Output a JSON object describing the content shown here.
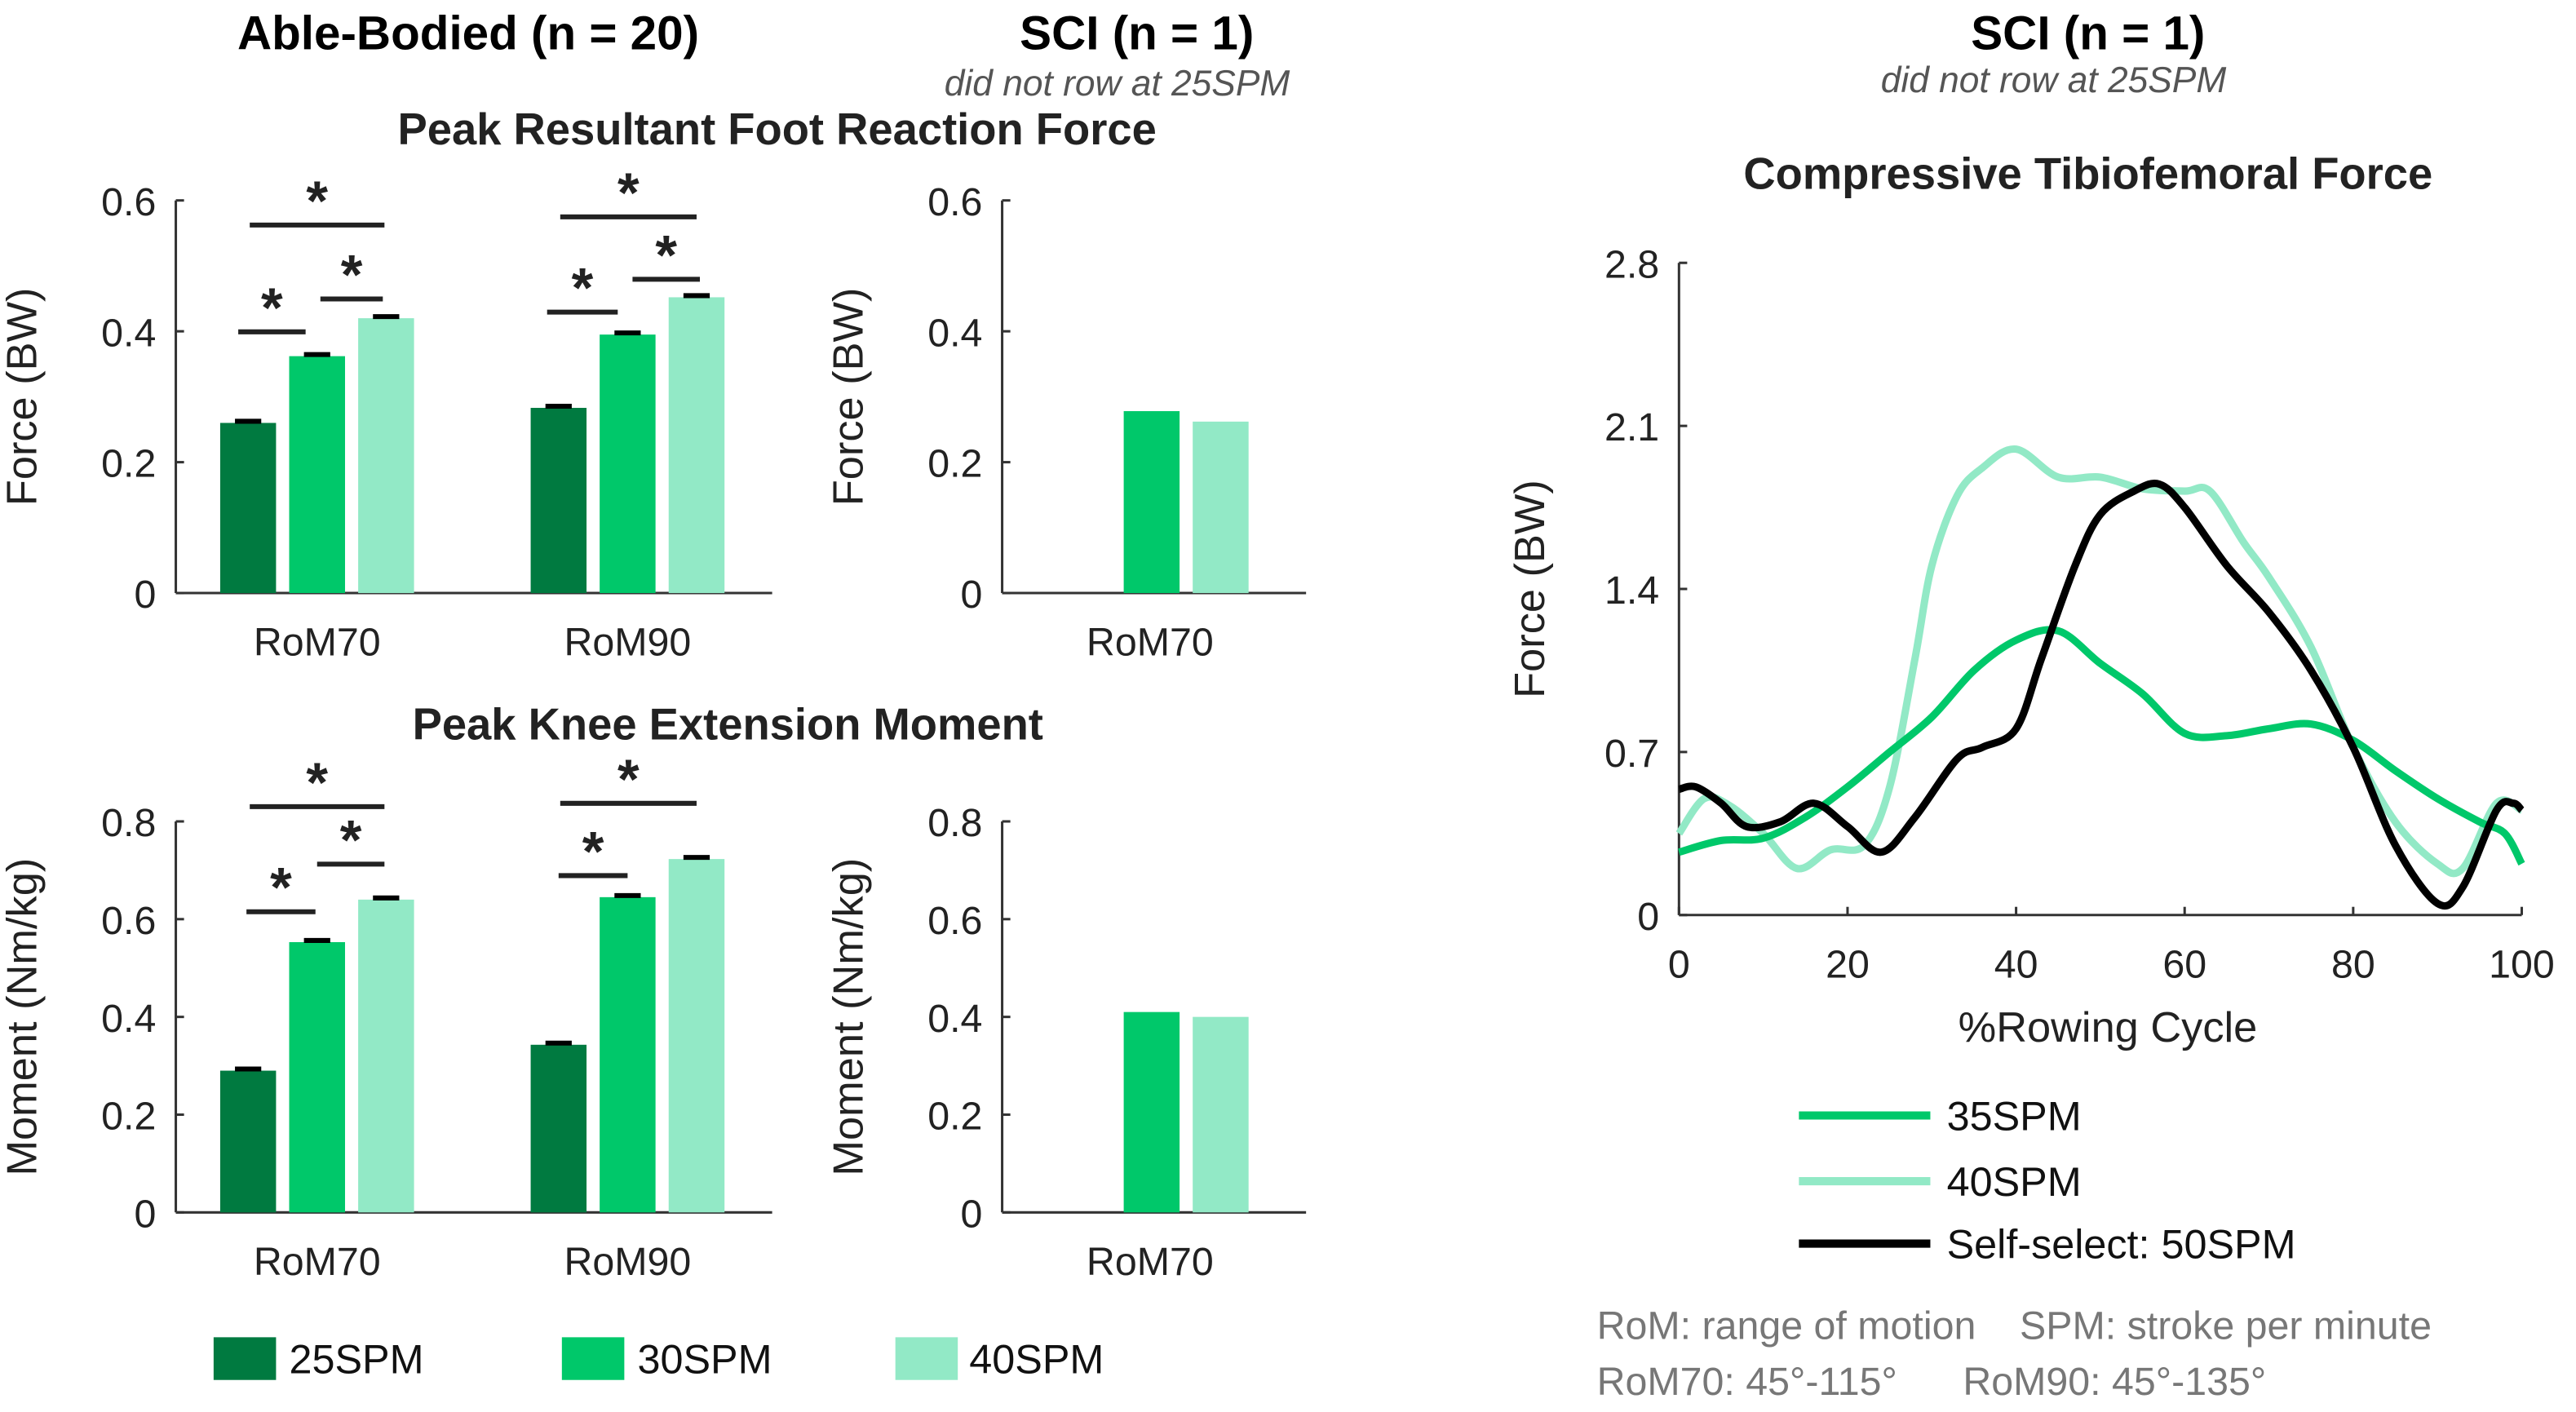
{
  "headers": {
    "able": "Able-Bodied (n = 20)",
    "sci": "SCI (n = 1)",
    "sci_sub": "did not row at 25SPM",
    "sci_right": "SCI (n = 1)",
    "sci_right_sub": "did not row at 25SPM"
  },
  "colors": {
    "s25": "#007a40",
    "s30": "#00c86a",
    "s40": "#92e9c6",
    "black": "#000000"
  },
  "legend": [
    "25SPM",
    "30SPM",
    "40SPM"
  ],
  "notes": [
    "RoM: range of motion    SPM: stroke per minute",
    "RoM70: 45°-115°      RoM90: 45°-135°"
  ],
  "chart_data": [
    {
      "type": "bar",
      "title": "Peak Resultant Foot Reaction Force",
      "ylabel": "Force (BW)",
      "ylim": [
        0,
        0.6
      ],
      "yticks": [
        "0",
        "0.2",
        "0.4",
        "0.6"
      ],
      "categories": [
        "RoM70",
        "RoM90"
      ],
      "series": [
        {
          "name": "25SPM",
          "values": [
            0.26,
            0.283
          ]
        },
        {
          "name": "30SPM",
          "values": [
            0.362,
            0.395
          ]
        },
        {
          "name": "40SPM",
          "values": [
            0.42,
            0.452
          ]
        }
      ],
      "significance": "*"
    },
    {
      "type": "bar",
      "title": "",
      "ylabel": "Force (BW)",
      "ylim": [
        0,
        0.6
      ],
      "yticks": [
        "0",
        "0.2",
        "0.4",
        "0.6"
      ],
      "categories": [
        "RoM70"
      ],
      "series": [
        {
          "name": "30SPM",
          "values": [
            0.278
          ]
        },
        {
          "name": "40SPM",
          "values": [
            0.262
          ]
        }
      ]
    },
    {
      "type": "bar",
      "title": "Peak Knee Extension Moment",
      "ylabel": "Moment (Nm/kg)",
      "ylim": [
        0,
        0.8
      ],
      "yticks": [
        "0",
        "0.2",
        "0.4",
        "0.6",
        "0.8"
      ],
      "categories": [
        "RoM70",
        "RoM90"
      ],
      "series": [
        {
          "name": "25SPM",
          "values": [
            0.29,
            0.343
          ]
        },
        {
          "name": "30SPM",
          "values": [
            0.553,
            0.645
          ]
        },
        {
          "name": "40SPM",
          "values": [
            0.64,
            0.723
          ]
        }
      ],
      "significance": "*"
    },
    {
      "type": "bar",
      "title": "",
      "ylabel": "Moment (Nm/kg)",
      "ylim": [
        0,
        0.8
      ],
      "yticks": [
        "0",
        "0.2",
        "0.4",
        "0.6",
        "0.8"
      ],
      "categories": [
        "RoM70"
      ],
      "series": [
        {
          "name": "30SPM",
          "values": [
            0.41
          ]
        },
        {
          "name": "40SPM",
          "values": [
            0.4
          ]
        }
      ]
    },
    {
      "type": "line",
      "title": "Compressive Tibiofemoral Force",
      "xlabel": "%Rowing Cycle",
      "ylabel": "Force (BW)",
      "xlim": [
        0,
        100
      ],
      "ylim": [
        0,
        2.8
      ],
      "xticks": [
        "0",
        "20",
        "40",
        "60",
        "80",
        "100"
      ],
      "yticks": [
        "0",
        "0.7",
        "1.4",
        "2.1",
        "2.8"
      ],
      "series": [
        {
          "name": "35SPM",
          "x": [
            0,
            5,
            10,
            15,
            20,
            25,
            30,
            35,
            40,
            45,
            50,
            55,
            60,
            65,
            70,
            75,
            80,
            85,
            90,
            95,
            98,
            100
          ],
          "y": [
            0.27,
            0.32,
            0.33,
            0.42,
            0.55,
            0.7,
            0.85,
            1.05,
            1.18,
            1.22,
            1.08,
            0.95,
            0.78,
            0.77,
            0.8,
            0.82,
            0.75,
            0.62,
            0.5,
            0.4,
            0.35,
            0.22
          ]
        },
        {
          "name": "40SPM",
          "x": [
            0,
            3,
            6,
            10,
            14,
            18,
            22,
            25,
            28,
            30,
            33,
            36,
            40,
            45,
            50,
            55,
            60,
            63,
            67,
            70,
            75,
            80,
            85,
            90,
            93,
            97,
            100
          ],
          "y": [
            0.35,
            0.5,
            0.47,
            0.35,
            0.2,
            0.28,
            0.3,
            0.55,
            1.1,
            1.5,
            1.8,
            1.92,
            2.0,
            1.88,
            1.88,
            1.83,
            1.82,
            1.82,
            1.6,
            1.45,
            1.15,
            0.72,
            0.4,
            0.22,
            0.2,
            0.48,
            0.45
          ]
        },
        {
          "name": "Self-select: 50SPM",
          "x": [
            0,
            2,
            5,
            8,
            12,
            16,
            20,
            24,
            28,
            33,
            36,
            40,
            43,
            47,
            50,
            54,
            57,
            60,
            65,
            70,
            75,
            80,
            85,
            90,
            93,
            97,
            99,
            100
          ],
          "y": [
            0.54,
            0.55,
            0.48,
            0.38,
            0.4,
            0.48,
            0.38,
            0.27,
            0.42,
            0.67,
            0.72,
            0.8,
            1.1,
            1.5,
            1.72,
            1.82,
            1.85,
            1.75,
            1.5,
            1.3,
            1.05,
            0.72,
            0.3,
            0.05,
            0.12,
            0.45,
            0.48,
            0.45
          ]
        }
      ]
    }
  ]
}
